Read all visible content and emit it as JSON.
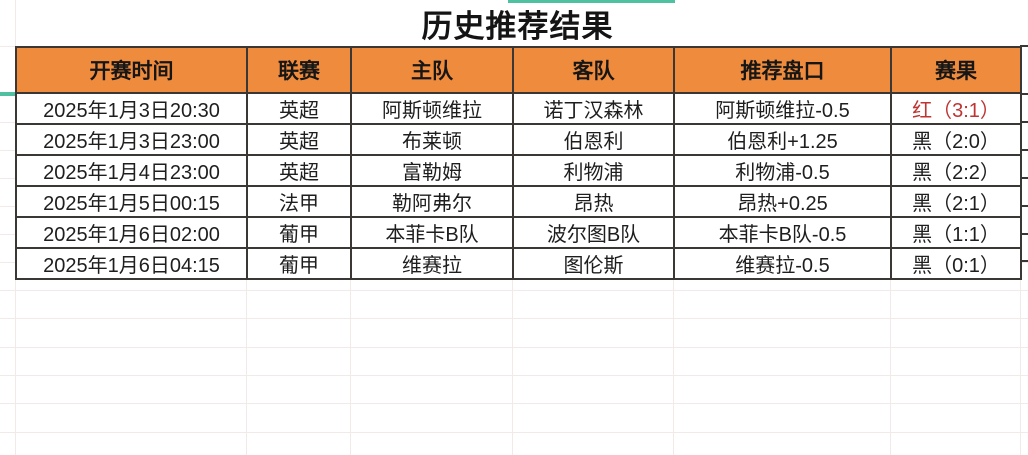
{
  "title": "历史推荐结果",
  "table": {
    "columns": [
      {
        "label": "开赛时间"
      },
      {
        "label": "联赛"
      },
      {
        "label": "主队"
      },
      {
        "label": "客队"
      },
      {
        "label": "推荐盘口"
      },
      {
        "label": "赛果"
      }
    ],
    "rows": [
      {
        "time": "2025年1月3日20:30",
        "league": "英超",
        "home": "阿斯顿维拉",
        "away": "诺丁汉森林",
        "handicap": "阿斯顿维拉-0.5",
        "result": "红（3:1）",
        "result_color": "red"
      },
      {
        "time": "2025年1月3日23:00",
        "league": "英超",
        "home": "布莱顿",
        "away": "伯恩利",
        "handicap": "伯恩利+1.25",
        "result": "黑（2:0）",
        "result_color": "black"
      },
      {
        "time": "2025年1月4日23:00",
        "league": "英超",
        "home": "富勒姆",
        "away": "利物浦",
        "handicap": "利物浦-0.5",
        "result": "黑（2:2）",
        "result_color": "black"
      },
      {
        "time": "2025年1月5日00:15",
        "league": "法甲",
        "home": "勒阿弗尔",
        "away": "昂热",
        "handicap": "昂热+0.25",
        "result": "黑（2:1）",
        "result_color": "black"
      },
      {
        "time": "2025年1月6日02:00",
        "league": "葡甲",
        "home": "本菲卡B队",
        "away": "波尔图B队",
        "handicap": "本菲卡B队-0.5",
        "result": "黑（1:1）",
        "result_color": "black"
      },
      {
        "time": "2025年1月6日04:15",
        "league": "葡甲",
        "home": "维赛拉",
        "away": "图伦斯",
        "handicap": "维赛拉-0.5",
        "result": "黑（0:1）",
        "result_color": "black"
      }
    ]
  },
  "colors": {
    "header_bg": "#EF8B3D",
    "result_red": "#BE3433",
    "selection_teal": "#4FC0A0",
    "border_dark": "#3B3734",
    "faint_grid": "#F2E9E9"
  }
}
